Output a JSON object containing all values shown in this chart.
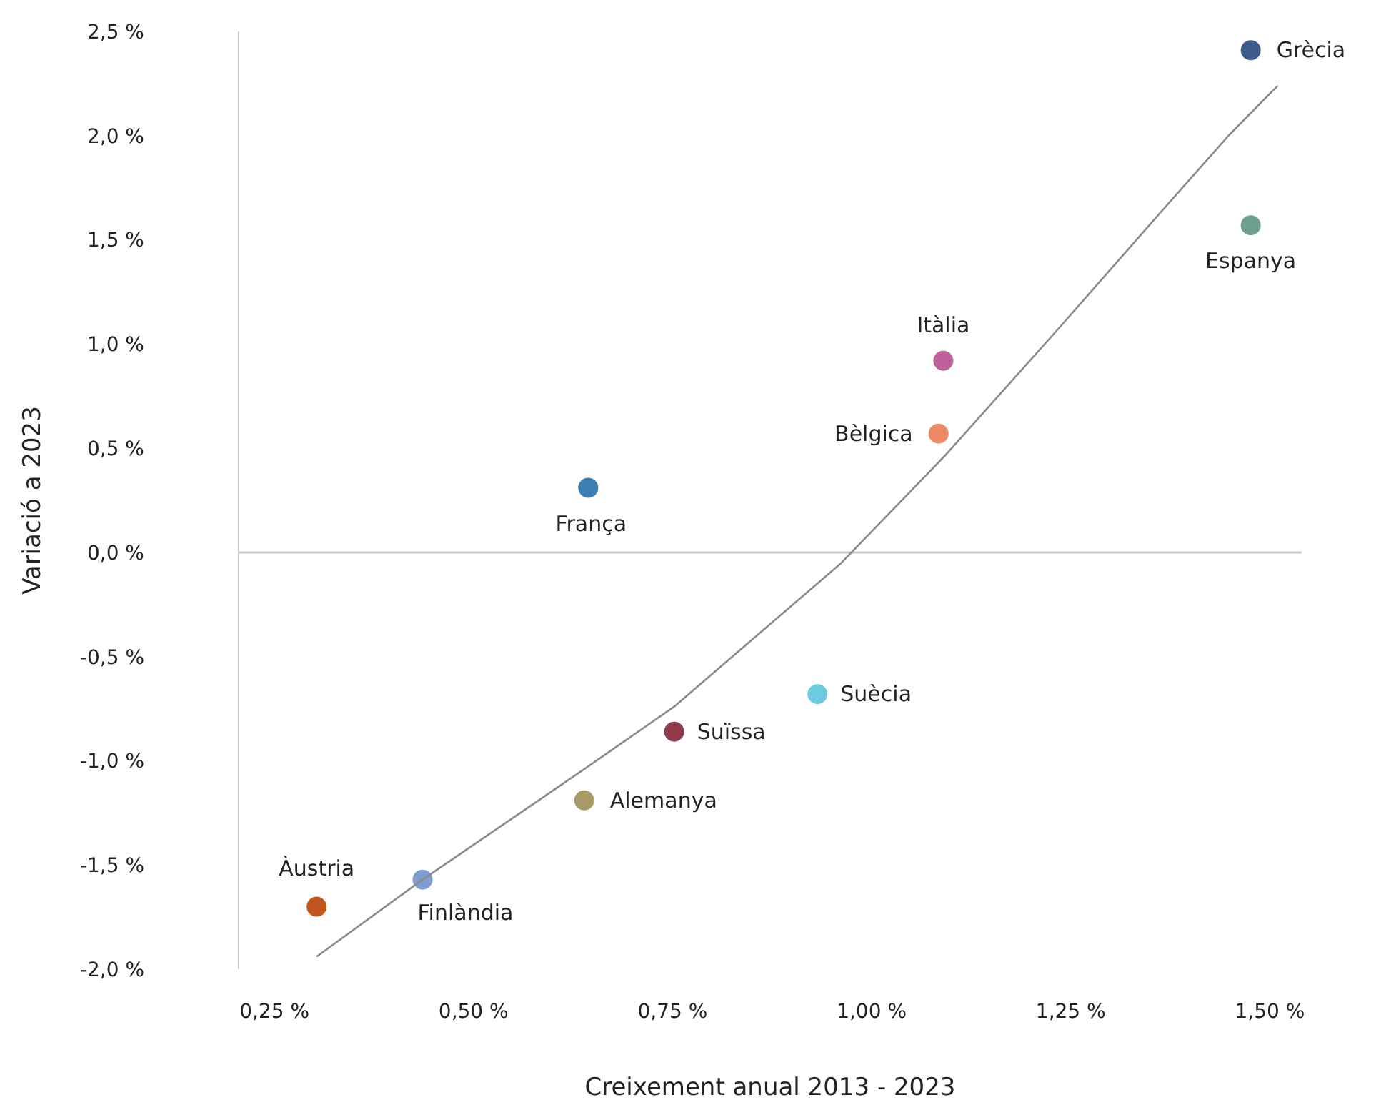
{
  "chart_data": {
    "type": "scatter",
    "xlabel": "Creixement anual 2013 - 2023",
    "ylabel": "Variació a 2023",
    "xlim": [
      0.205,
      1.54
    ],
    "ylim": [
      -2.0,
      2.5
    ],
    "xticks": [
      {
        "value": 0.25,
        "label": "0,25 %"
      },
      {
        "value": 0.5,
        "label": "0,50 %"
      },
      {
        "value": 0.75,
        "label": "0,75 %"
      },
      {
        "value": 1.0,
        "label": "1,00 %"
      },
      {
        "value": 1.25,
        "label": "1,25 %"
      },
      {
        "value": 1.5,
        "label": "1,50 %"
      }
    ],
    "yticks": [
      {
        "value": -2.0,
        "label": "-2,0 %"
      },
      {
        "value": -1.5,
        "label": "-1,5 %"
      },
      {
        "value": -1.0,
        "label": "-1,0 %"
      },
      {
        "value": -0.5,
        "label": "-0,5 %"
      },
      {
        "value": 0.0,
        "label": "0,0 %"
      },
      {
        "value": 0.5,
        "label": "0,5 %"
      },
      {
        "value": 1.0,
        "label": "1,0 %"
      },
      {
        "value": 1.5,
        "label": "1,5 %"
      },
      {
        "value": 2.0,
        "label": "2,0 %"
      },
      {
        "value": 2.5,
        "label": "2,5 %"
      }
    ],
    "grid": false,
    "legend": false,
    "marker": "circle",
    "ref_lines": [
      {
        "axis": "y",
        "value": 0,
        "color": "#c8c8c8"
      }
    ],
    "series": [
      {
        "name": "Grècia",
        "color": "#3e5a8c",
        "x": [
          1.476
        ],
        "values": [
          2.41
        ]
      },
      {
        "name": "Espanya",
        "color": "#6e9e8e",
        "x": [
          1.476
        ],
        "values": [
          1.57
        ]
      },
      {
        "name": "Itàlia",
        "color": "#c0609a",
        "x": [
          1.09
        ],
        "values": [
          0.92
        ]
      },
      {
        "name": "Bèlgica",
        "color": "#ec8a68",
        "x": [
          1.084
        ],
        "values": [
          0.57
        ]
      },
      {
        "name": "França",
        "color": "#3a7fb0",
        "x": [
          0.644
        ],
        "values": [
          0.31
        ]
      },
      {
        "name": "Suècia",
        "color": "#6ccbe0",
        "x": [
          0.932
        ],
        "values": [
          -0.68
        ]
      },
      {
        "name": "Suïssa",
        "color": "#8e3a4a",
        "x": [
          0.752
        ],
        "values": [
          -0.86
        ]
      },
      {
        "name": "Alemanya",
        "color": "#a89a66",
        "x": [
          0.639
        ],
        "values": [
          -1.19
        ]
      },
      {
        "name": "Finlàndia",
        "color": "#7f9cd0",
        "x": [
          0.436
        ],
        "values": [
          -1.57
        ]
      },
      {
        "name": "Àustria",
        "color": "#c0561e",
        "x": [
          0.303
        ],
        "values": [
          -1.7
        ]
      },
      {
        "type": "line",
        "marker": "none",
        "color": "#8a8a8a",
        "x": [
          0.303,
          0.436,
          0.639,
          0.752,
          0.962,
          1.091,
          1.236,
          1.36,
          1.448,
          1.51
        ],
        "values": [
          -1.94,
          -1.57,
          -1.04,
          -0.74,
          -0.05,
          0.46,
          1.08,
          1.62,
          2.0,
          2.24
        ]
      }
    ]
  }
}
